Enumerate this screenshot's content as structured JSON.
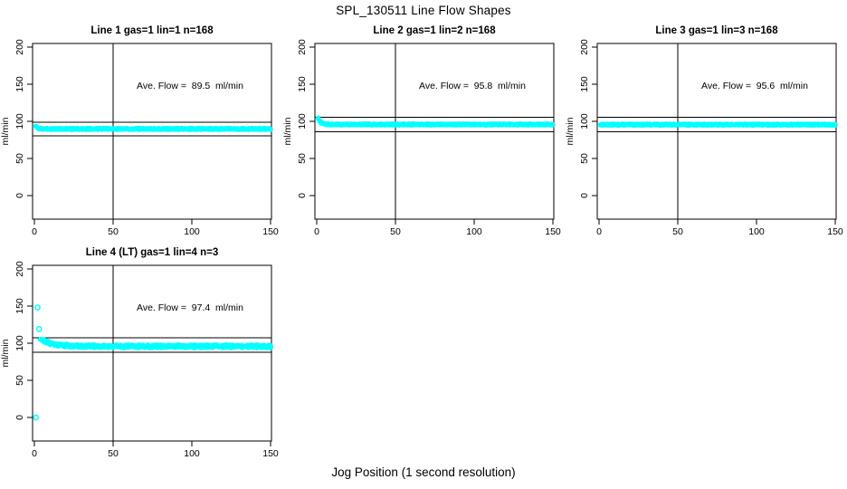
{
  "figure": {
    "main_title": "SPL_130511  Line Flow Shapes",
    "x_axis_label": "Jog Position (1 second resolution)",
    "y_axis_label": "ml/min",
    "point_color": "#00ffff",
    "axis_color": "#000000",
    "background_color": "#ffffff"
  },
  "chart_data": [
    {
      "type": "scatter",
      "title": "Line 1 gas=1 lin=1 n=168",
      "annotation": "Ave. Flow =  89.5  ml/min",
      "ave_flow_ml_min": 89.5,
      "ylabel": "ml/min",
      "xlim": [
        0,
        150
      ],
      "ylim": [
        0,
        200
      ],
      "xticks": [
        0,
        50,
        100,
        150
      ],
      "yticks": [
        0,
        50,
        100,
        150,
        200
      ],
      "vline_x": 50,
      "hlines": [
        98.5,
        80.6
      ],
      "band": {
        "x_start": 1,
        "x_end": 150,
        "start_y": 93.5,
        "settle_y": 89.8,
        "tau": 1.2,
        "noise": 0.9,
        "step": 0.5,
        "copies": 2,
        "seed": 3,
        "radius": 2.0
      },
      "outliers": []
    },
    {
      "type": "scatter",
      "title": "Line 2 gas=1 lin=2 n=168",
      "annotation": "Ave. Flow =  95.8  ml/min",
      "ave_flow_ml_min": 95.8,
      "ylabel": "ml/min",
      "xlim": [
        0,
        150
      ],
      "ylim": [
        0,
        200
      ],
      "xticks": [
        0,
        50,
        100,
        150
      ],
      "yticks": [
        0,
        50,
        100,
        150,
        200
      ],
      "vline_x": 50,
      "hlines": [
        105.4,
        86.2
      ],
      "band": {
        "x_start": 1,
        "x_end": 150,
        "start_y": 104,
        "settle_y": 95.8,
        "tau": 1.6,
        "noise": 0.9,
        "step": 0.5,
        "copies": 2,
        "seed": 7,
        "radius": 2.0
      },
      "outliers": []
    },
    {
      "type": "scatter",
      "title": "Line 3 gas=1 lin=3 n=168",
      "annotation": "Ave. Flow =  95.6  ml/min",
      "ave_flow_ml_min": 95.6,
      "ylabel": "ml/min",
      "xlim": [
        0,
        150
      ],
      "ylim": [
        0,
        200
      ],
      "xticks": [
        0,
        50,
        100,
        150
      ],
      "yticks": [
        0,
        50,
        100,
        150,
        200
      ],
      "vline_x": 50,
      "hlines": [
        105.2,
        86.0
      ],
      "band": {
        "x_start": 1,
        "x_end": 150,
        "start_y": 95.6,
        "settle_y": 95.6,
        "tau": 0,
        "noise": 0.9,
        "step": 0.5,
        "copies": 2,
        "seed": 13,
        "radius": 2.0
      },
      "outliers": []
    },
    {
      "type": "scatter",
      "title": "Line 4 (LT) gas=1 lin=4 n=3",
      "annotation": "Ave. Flow =  97.4  ml/min",
      "ave_flow_ml_min": 97.4,
      "ylabel": "ml/min",
      "xlim": [
        0,
        150
      ],
      "ylim": [
        0,
        200
      ],
      "xticks": [
        0,
        50,
        100,
        150
      ],
      "yticks": [
        0,
        50,
        100,
        150,
        200
      ],
      "vline_x": 50,
      "hlines": [
        107.1,
        87.7
      ],
      "band": {
        "x_start": 4,
        "x_end": 150,
        "start_y": 106,
        "settle_y": 95.8,
        "tau": 7,
        "noise": 1.8,
        "step": 1,
        "copies": 3,
        "seed": 21,
        "radius": 2.2
      },
      "outliers": [
        [
          1,
          0
        ],
        [
          2,
          148
        ],
        [
          3,
          119
        ]
      ]
    }
  ]
}
